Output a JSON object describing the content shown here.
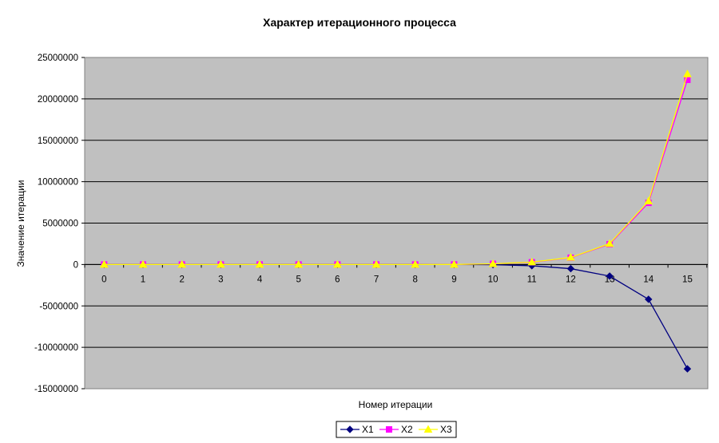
{
  "chart_data": {
    "type": "line",
    "title": "Характер итерационного процесса",
    "xlabel": "Номер итерации",
    "ylabel": "Значение итерации",
    "categories": [
      "0",
      "1",
      "2",
      "3",
      "4",
      "5",
      "6",
      "7",
      "8",
      "9",
      "10",
      "11",
      "12",
      "13",
      "14",
      "15"
    ],
    "ylim": [
      -15000000,
      25000000
    ],
    "yticks": [
      25000000,
      20000000,
      15000000,
      10000000,
      5000000,
      0,
      -5000000,
      -10000000,
      -15000000
    ],
    "ytick_labels": [
      "25000000",
      "20000000",
      "15000000",
      "10000000",
      "5000000",
      "0",
      "-5000000",
      "-10000000",
      "-15000000"
    ],
    "grid": "horizontal",
    "legend": "bottom",
    "plot_background": "#c0c0c0",
    "series": [
      {
        "name": "X1",
        "color": "#000080",
        "marker": "diamond",
        "values": [
          0,
          0,
          0,
          0,
          0,
          0,
          0,
          0,
          0,
          -2000,
          -20000,
          -150000,
          -500000,
          -1400000,
          -4200000,
          -12600000
        ]
      },
      {
        "name": "X2",
        "color": "#ff00ff",
        "marker": "square",
        "values": [
          0,
          0,
          0,
          0,
          0,
          0,
          0,
          0,
          0,
          5000,
          80000,
          270000,
          820000,
          2450000,
          7450000,
          22300000
        ]
      },
      {
        "name": "X3",
        "color": "#ffff00",
        "marker": "triangle",
        "values": [
          0,
          0,
          0,
          0,
          0,
          0,
          0,
          0,
          0,
          5000,
          85000,
          290000,
          850000,
          2520000,
          7650000,
          23000000
        ]
      }
    ]
  }
}
